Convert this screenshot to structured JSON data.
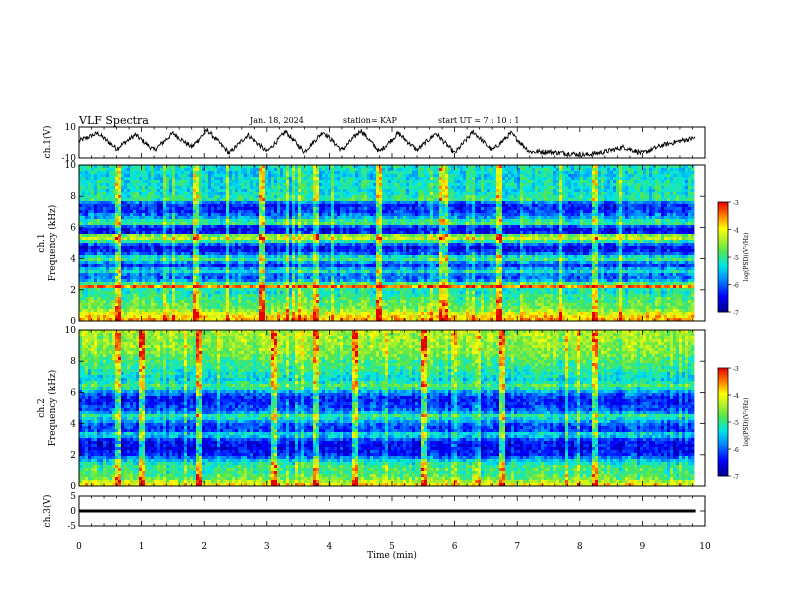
{
  "header": {
    "title": "VLF Spectra",
    "date": "Jan. 18, 2024",
    "station": "station= KAP",
    "start_ut": "start  UT =   7 : 10 : 1"
  },
  "chart_data": [
    {
      "type": "line",
      "panel": "ch1-waveform",
      "ylabel": "ch.1(V)",
      "ylim": [
        -10,
        10
      ],
      "yticks": [
        "10",
        "-10"
      ],
      "x": [
        0.0,
        0.3,
        0.6,
        0.9,
        1.2,
        1.5,
        1.8,
        2.05,
        2.4,
        2.7,
        3.0,
        3.3,
        3.6,
        3.9,
        4.2,
        4.5,
        4.8,
        5.1,
        5.4,
        5.7,
        6.0,
        6.3,
        6.6,
        6.9,
        7.2,
        7.5,
        7.8,
        8.1,
        8.4,
        8.7,
        9.0,
        9.3,
        9.6,
        9.85
      ],
      "y": [
        1,
        6,
        -4,
        5,
        -5,
        6,
        -3,
        8,
        -7,
        5,
        -6,
        7,
        -6,
        7,
        -5,
        8,
        -6,
        6,
        -5,
        6,
        -7,
        7,
        -5,
        6,
        -6,
        -6,
        -7,
        -8,
        -6,
        -3,
        -7,
        -2,
        1,
        3
      ]
    },
    {
      "type": "heatmap",
      "panel": "ch1-spectrogram",
      "ylabel": "ch.1\nFrequency (kHz)",
      "ylim": [
        0,
        10
      ],
      "yticks": [
        "0",
        "2",
        "4",
        "6",
        "8",
        "10"
      ],
      "xlim": [
        0,
        10
      ],
      "colorbar_label": "log(PSD)(V²/Hz)",
      "colorbar_ticks": [
        "-3",
        "-4",
        "-5",
        "-6",
        "-7"
      ],
      "colorbar_range": [
        -7,
        -3
      ],
      "frequency_profile": [
        [
          0.0,
          -3.6
        ],
        [
          0.4,
          -4.0
        ],
        [
          0.8,
          -4.7
        ],
        [
          1.2,
          -4.8
        ],
        [
          1.6,
          -5.0
        ],
        [
          2.0,
          -5.3
        ],
        [
          2.2,
          -3.4
        ],
        [
          2.5,
          -5.6
        ],
        [
          2.9,
          -6.1
        ],
        [
          3.2,
          -5.2
        ],
        [
          3.6,
          -6.3
        ],
        [
          4.0,
          -4.8
        ],
        [
          4.4,
          -6.3
        ],
        [
          4.8,
          -6.5
        ],
        [
          5.2,
          -4.6
        ],
        [
          5.4,
          -3.9
        ],
        [
          5.7,
          -6.6
        ],
        [
          6.0,
          -6.4
        ],
        [
          6.3,
          -4.7
        ],
        [
          6.6,
          -5.6
        ],
        [
          7.0,
          -6.2
        ],
        [
          7.5,
          -6.3
        ],
        [
          7.8,
          -5.0
        ],
        [
          8.3,
          -5.3
        ],
        [
          8.8,
          -5.2
        ],
        [
          9.3,
          -5.4
        ],
        [
          10.0,
          -5.2
        ]
      ],
      "vertical_bursts_min": [
        0.6,
        1.85,
        2.9,
        3.75,
        4.75,
        5.8,
        6.7,
        8.2
      ]
    },
    {
      "type": "heatmap",
      "panel": "ch2-spectrogram",
      "ylabel": "ch.2\nFrequency (kHz)",
      "ylim": [
        0,
        10
      ],
      "yticks": [
        "0",
        "2",
        "4",
        "6",
        "8",
        "10"
      ],
      "xlim": [
        0,
        10
      ],
      "colorbar_label": "log(PSD)(V²/Hz)",
      "colorbar_ticks": [
        "-3",
        "-4",
        "-5",
        "-6",
        "-7"
      ],
      "colorbar_range": [
        -7,
        -3
      ],
      "frequency_profile": [
        [
          0.0,
          -3.8
        ],
        [
          0.4,
          -4.6
        ],
        [
          0.8,
          -5.0
        ],
        [
          1.2,
          -4.9
        ],
        [
          1.6,
          -5.4
        ],
        [
          2.0,
          -6.3
        ],
        [
          2.4,
          -6.5
        ],
        [
          2.9,
          -6.4
        ],
        [
          3.3,
          -5.2
        ],
        [
          3.6,
          -6.3
        ],
        [
          4.0,
          -6.0
        ],
        [
          4.5,
          -5.0
        ],
        [
          4.8,
          -6.0
        ],
        [
          5.2,
          -6.2
        ],
        [
          5.6,
          -6.4
        ],
        [
          6.0,
          -5.8
        ],
        [
          6.4,
          -4.8
        ],
        [
          6.8,
          -5.4
        ],
        [
          7.2,
          -5.2
        ],
        [
          7.6,
          -5.0
        ],
        [
          8.0,
          -4.9
        ],
        [
          8.6,
          -4.6
        ],
        [
          9.2,
          -4.5
        ],
        [
          10.0,
          -4.4
        ]
      ],
      "vertical_bursts_min": [
        0.6,
        1.0,
        1.9,
        3.1,
        3.75,
        4.4,
        5.5,
        6.75,
        8.2
      ]
    },
    {
      "type": "line",
      "panel": "ch3-waveform",
      "ylabel": "ch.3(V)",
      "ylim": [
        -5,
        5
      ],
      "yticks": [
        "5",
        "0",
        "-5"
      ],
      "x": [
        0,
        9.85
      ],
      "y": [
        0,
        0
      ],
      "band_halfwidth": 0.5
    }
  ],
  "xaxis": {
    "label": "Time (min)",
    "ticks": [
      "0",
      "1",
      "2",
      "3",
      "4",
      "5",
      "6",
      "7",
      "8",
      "9",
      "10"
    ],
    "xlim": [
      0,
      10
    ]
  }
}
